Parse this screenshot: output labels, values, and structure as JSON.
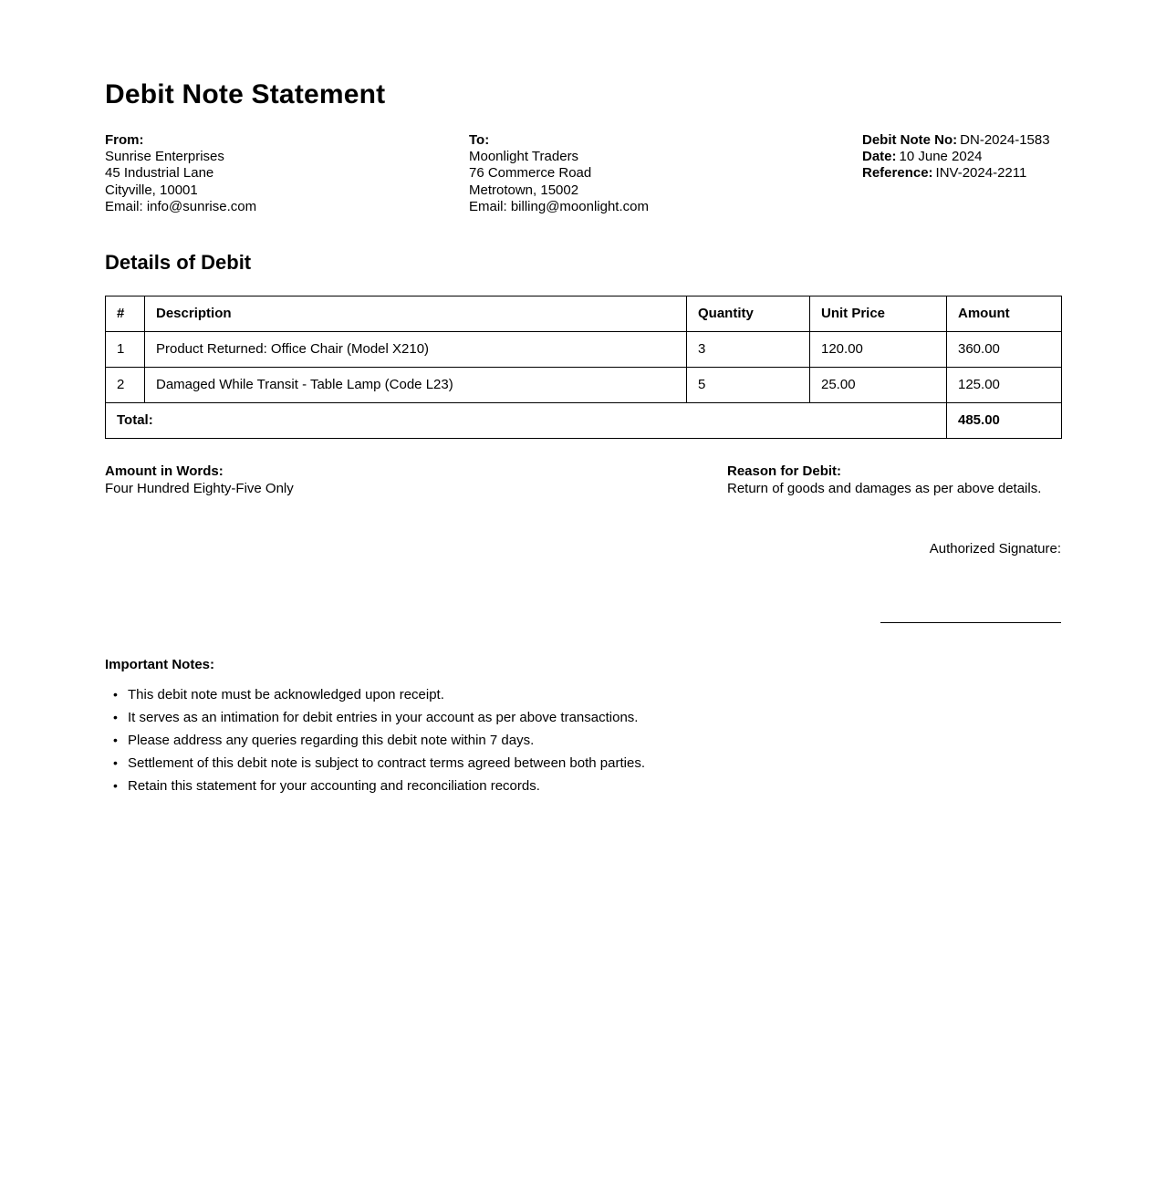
{
  "document": {
    "title": "Debit Note Statement",
    "from": {
      "label": "From:",
      "lines": [
        "Sunrise Enterprises",
        "45 Industrial Lane",
        "Cityville, 10001",
        "Email: info@sunrise.com"
      ]
    },
    "to": {
      "label": "To:",
      "lines": [
        "Moonlight Traders",
        "76 Commerce Road",
        "Metrotown, 15002",
        "Email: billing@moonlight.com"
      ]
    },
    "meta": {
      "items": [
        {
          "label": "Debit Note No:",
          "value": "DN-2024-1583"
        },
        {
          "label": "Date:",
          "value": "10 June 2024"
        },
        {
          "label": "Reference:",
          "value": "INV-2024-2211"
        }
      ]
    },
    "details": {
      "heading": "Details of Debit",
      "table": {
        "headers": [
          "#",
          "Description",
          "Quantity",
          "Unit Price",
          "Amount"
        ],
        "rows": [
          [
            "1",
            "Product Returned: Office Chair (Model X210)",
            "3",
            "120.00",
            "360.00"
          ],
          [
            "2",
            "Damaged While Transit - Table Lamp (Code L23)",
            "5",
            "25.00",
            "125.00"
          ]
        ],
        "total_label": "Total:",
        "total_value": "485.00"
      }
    },
    "amount_in_words": {
      "label": "Amount in Words:",
      "value": "Four Hundred Eighty-Five Only"
    },
    "reason": {
      "label": "Reason for Debit:",
      "value": "Return of goods and damages as per above details."
    },
    "signature": {
      "label": "Authorized Signature:"
    },
    "notes": {
      "label": "Important Notes:",
      "items": [
        "This debit note must be acknowledged upon receipt.",
        "It serves as an intimation for debit entries in your account as per above transactions.",
        "Please address any queries regarding this debit note within 7 days.",
        "Settlement of this debit note is subject to contract terms agreed between both parties.",
        "Retain this statement for your accounting and reconciliation records."
      ]
    }
  }
}
